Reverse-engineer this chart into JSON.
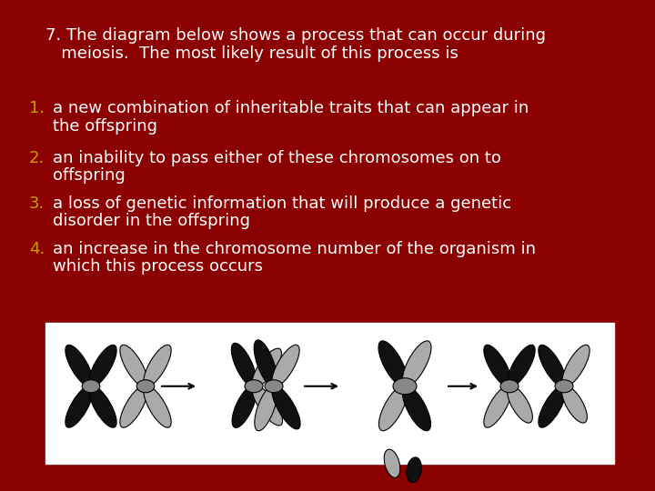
{
  "background_color": "#8B0000",
  "title_line1": "7. The diagram below shows a process that can occur during",
  "title_line2": "   meiosis.  The most likely result of this process is",
  "items": [
    {
      "num": "1.",
      "line1": "a new combination of inheritable traits that can appear in",
      "line2": "the offspring"
    },
    {
      "num": "2.",
      "line1": "an inability to pass either of these chromosomes on to",
      "line2": "offspring"
    },
    {
      "num": "3.",
      "line1": "a loss of genetic information that will produce a genetic",
      "line2": "disorder in the offspring"
    },
    {
      "num": "4.",
      "line1": "an increase in the chromosome number of the organism in",
      "line2": "which this process occurs"
    }
  ],
  "num_color": "#C8A000",
  "text_color": "#FFFFFF",
  "title_color": "#FFFFFF",
  "font_size": 13,
  "dark_color": "#111111",
  "light_color": "#AAAAAA",
  "centromere_color": "#888888"
}
